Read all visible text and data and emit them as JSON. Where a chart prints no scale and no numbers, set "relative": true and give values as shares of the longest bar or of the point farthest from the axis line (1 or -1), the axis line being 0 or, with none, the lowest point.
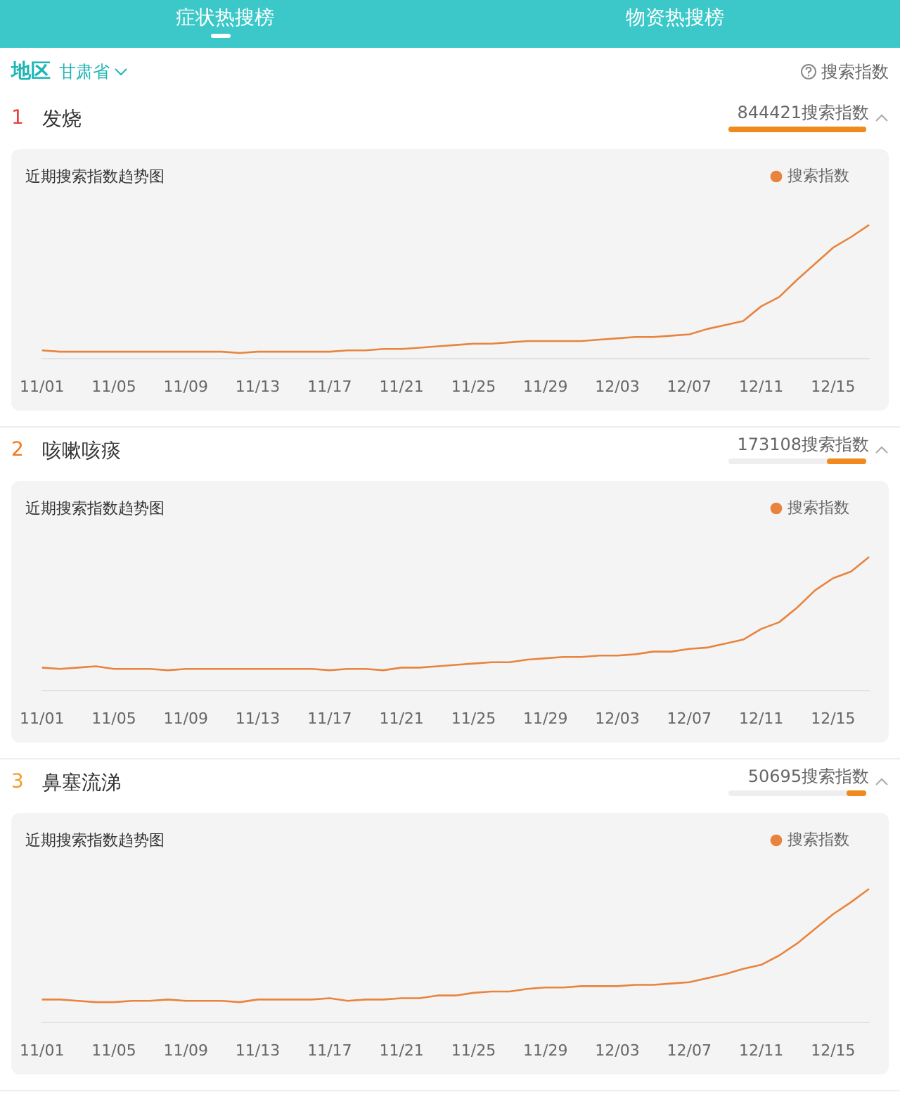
{
  "chart_data": [
    {
      "type": "line",
      "title": "发烧",
      "subtitle": "近期搜索指数趋势图",
      "relative": true,
      "legend": "top right",
      "marker": "none",
      "line_style": "solid",
      "annotations": [
        "症状热搜榜",
        "物资热搜榜",
        "地区",
        "甘肃省",
        "搜索指数",
        "1",
        "844421搜索指数"
      ],
      "categories": [
        "11/01",
        null,
        null,
        null,
        "11/05",
        null,
        null,
        null,
        "11/09",
        null,
        null,
        null,
        "11/13",
        null,
        null,
        null,
        "11/17",
        null,
        null,
        null,
        "11/21",
        null,
        null,
        null,
        "11/25",
        null,
        null,
        null,
        "11/29",
        null,
        null,
        null,
        "12/03",
        null,
        null,
        null,
        "12/07",
        null,
        null,
        null,
        "12/11",
        null,
        null,
        null,
        "12/15",
        null,
        null
      ],
      "series": [
        {
          "name": "搜索指数",
          "color": "#e8843e",
          "values": [
            0.06,
            0.05,
            0.05,
            0.05,
            0.05,
            0.05,
            0.05,
            0.05,
            0.05,
            0.05,
            0.05,
            0.04,
            0.05,
            0.05,
            0.05,
            0.05,
            0.05,
            0.06,
            0.06,
            0.07,
            0.07,
            0.08,
            0.09,
            0.1,
            0.11,
            0.11,
            0.12,
            0.13,
            0.13,
            0.13,
            0.13,
            0.14,
            0.15,
            0.16,
            0.16,
            0.17,
            0.18,
            0.22,
            0.25,
            0.28,
            0.39,
            0.46,
            0.59,
            0.71,
            0.83,
            0.91,
            1
          ]
        }
      ]
    },
    {
      "type": "line",
      "title": "咳嗽咳痰",
      "subtitle": "近期搜索指数趋势图",
      "relative": true,
      "legend": "top right",
      "marker": "none",
      "line_style": "solid",
      "annotations": [
        "2",
        "173108搜索指数"
      ],
      "categories": [
        "11/01",
        null,
        null,
        null,
        "11/05",
        null,
        null,
        null,
        "11/09",
        null,
        null,
        null,
        "11/13",
        null,
        null,
        null,
        "11/17",
        null,
        null,
        null,
        "11/21",
        null,
        null,
        null,
        "11/25",
        null,
        null,
        null,
        "11/29",
        null,
        null,
        null,
        "12/03",
        null,
        null,
        null,
        "12/07",
        null,
        null,
        null,
        "12/11",
        null,
        null,
        null,
        "12/15",
        null,
        null
      ],
      "series": [
        {
          "name": "搜索指数",
          "color": "#e8843e",
          "values": [
            0.17,
            0.16,
            0.17,
            0.18,
            0.16,
            0.16,
            0.16,
            0.15,
            0.16,
            0.16,
            0.16,
            0.16,
            0.16,
            0.16,
            0.16,
            0.16,
            0.15,
            0.16,
            0.16,
            0.15,
            0.17,
            0.17,
            0.18,
            0.19,
            0.2,
            0.21,
            0.21,
            0.23,
            0.24,
            0.25,
            0.25,
            0.26,
            0.26,
            0.27,
            0.29,
            0.29,
            0.31,
            0.32,
            0.35,
            0.38,
            0.46,
            0.51,
            0.62,
            0.75,
            0.84,
            0.89,
            1
          ]
        }
      ]
    },
    {
      "type": "line",
      "title": "鼻塞流涕",
      "subtitle": "近期搜索指数趋势图",
      "relative": true,
      "legend": "top right",
      "marker": "none",
      "line_style": "solid",
      "annotations": [
        "3",
        "50695搜索指数"
      ],
      "categories": [
        "11/01",
        null,
        null,
        null,
        "11/05",
        null,
        null,
        null,
        "11/09",
        null,
        null,
        null,
        "11/13",
        null,
        null,
        null,
        "11/17",
        null,
        null,
        null,
        "11/21",
        null,
        null,
        null,
        "11/25",
        null,
        null,
        null,
        "11/29",
        null,
        null,
        null,
        "12/03",
        null,
        null,
        null,
        "12/07",
        null,
        null,
        null,
        "12/11",
        null,
        null,
        null,
        "12/15",
        null,
        null
      ],
      "series": [
        {
          "name": "搜索指数",
          "color": "#e8843e",
          "values": [
            0.17,
            0.17,
            0.16,
            0.15,
            0.15,
            0.16,
            0.16,
            0.17,
            0.16,
            0.16,
            0.16,
            0.15,
            0.17,
            0.17,
            0.17,
            0.17,
            0.18,
            0.16,
            0.17,
            0.17,
            0.18,
            0.18,
            0.2,
            0.2,
            0.22,
            0.23,
            0.23,
            0.25,
            0.26,
            0.26,
            0.27,
            0.27,
            0.27,
            0.28,
            0.28,
            0.29,
            0.3,
            0.33,
            0.36,
            0.4,
            0.43,
            0.5,
            0.59,
            0.7,
            0.81,
            0.9,
            1
          ]
        }
      ]
    }
  ]
}
